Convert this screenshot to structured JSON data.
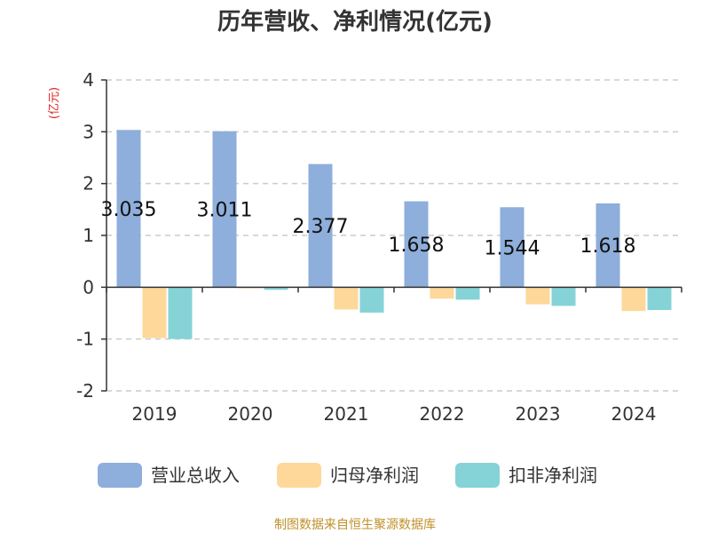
{
  "chart_data": {
    "type": "bar",
    "title": "历年营收、净利情况(亿元)",
    "unit_label": "(亿元)",
    "categories": [
      "2019",
      "2020",
      "2021",
      "2022",
      "2023",
      "2024"
    ],
    "series": [
      {
        "name": "营业总收入",
        "color": "#8eaedb",
        "values": [
          3.035,
          3.011,
          2.377,
          1.658,
          1.544,
          1.618
        ]
      },
      {
        "name": "归母净利润",
        "color": "#fdd89a",
        "values": [
          -0.98,
          -0.02,
          -0.43,
          -0.22,
          -0.33,
          -0.46
        ]
      },
      {
        "name": "扣非净利润",
        "color": "#85d3d6",
        "values": [
          -1.0,
          -0.05,
          -0.49,
          -0.24,
          -0.36,
          -0.44
        ]
      }
    ],
    "data_labels": [
      "3.035",
      "3.011",
      "2.377",
      "1.658",
      "1.544",
      "1.618"
    ],
    "y_ticks": [
      "4",
      "3",
      "2",
      "1",
      "0",
      "-1",
      "-2"
    ],
    "ylim": [
      -2,
      4
    ],
    "grid": true,
    "legend_position": "bottom",
    "source": "制图数据来自恒生聚源数据库"
  }
}
